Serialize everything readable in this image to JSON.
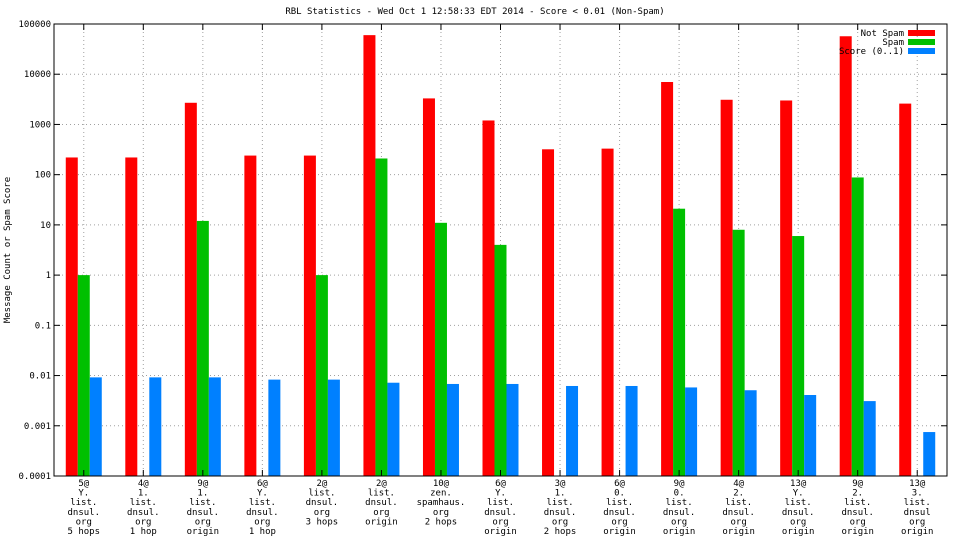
{
  "chart_data": {
    "type": "bar",
    "title": "RBL Statistics - Wed Oct  1 12:58:33 EDT 2014 - Score < 0.01 (Non-Spam)",
    "ylabel": "Message Count or Spam Score",
    "yscale": "log",
    "ylim": [
      0.0001,
      100000
    ],
    "yticks": [
      "0.0001",
      "0.001",
      "0.01",
      "0.1",
      "1",
      "10",
      "100",
      "1000",
      "10000",
      "100000"
    ],
    "grid": true,
    "legend_position": "top-right",
    "categories": [
      [
        "5@",
        "Y.",
        "list.",
        "dnsul.",
        "org",
        "5 hops"
      ],
      [
        "4@",
        "1.",
        "list.",
        "dnsul.",
        "org",
        "1 hop"
      ],
      [
        "9@",
        "1.",
        "list.",
        "dnsul.",
        "org",
        "origin"
      ],
      [
        "6@",
        "Y.",
        "list.",
        "dnsul.",
        "org",
        "1 hop"
      ],
      [
        "2@",
        "list.",
        "dnsul.",
        "org",
        "3 hops"
      ],
      [
        "2@",
        "list.",
        "dnsul.",
        "org",
        "origin"
      ],
      [
        "10@",
        "zen.",
        "spamhaus.",
        "org",
        "2 hops"
      ],
      [
        "6@",
        "Y.",
        "list.",
        "dnsul.",
        "org",
        "origin"
      ],
      [
        "3@",
        "1.",
        "list.",
        "dnsul.",
        "org",
        "2 hops"
      ],
      [
        "6@",
        "0.",
        "list.",
        "dnsul.",
        "org",
        "origin"
      ],
      [
        "9@",
        "0.",
        "list.",
        "dnsul.",
        "org",
        "origin"
      ],
      [
        "4@",
        "2.",
        "list.",
        "dnsul.",
        "org",
        "origin"
      ],
      [
        "13@",
        "Y.",
        "list.",
        "dnsul.",
        "org",
        "origin"
      ],
      [
        "9@",
        "2.",
        "list.",
        "dnsul.",
        "org",
        "origin"
      ],
      [
        "13@",
        "3.",
        "list.",
        "dnsul",
        "org",
        "origin"
      ]
    ],
    "series": [
      {
        "name": "Not Spam",
        "color": "#ff0000",
        "values": [
          220,
          220,
          2700,
          240,
          240,
          60000,
          3300,
          1200,
          320,
          330,
          7000,
          3100,
          3000,
          57000,
          2600
        ]
      },
      {
        "name": "Spam",
        "color": "#00c000",
        "values": [
          1,
          null,
          12,
          null,
          1,
          210,
          11,
          4,
          null,
          null,
          21,
          8,
          6,
          88,
          null
        ]
      },
      {
        "name": "Score (0..1)",
        "color": "#0080ff",
        "values": [
          0.0092,
          0.0092,
          0.0092,
          0.0083,
          0.0083,
          0.0072,
          0.0068,
          0.0068,
          0.0062,
          0.0062,
          0.0058,
          0.0051,
          0.0041,
          0.0031,
          0.00075
        ]
      }
    ]
  }
}
